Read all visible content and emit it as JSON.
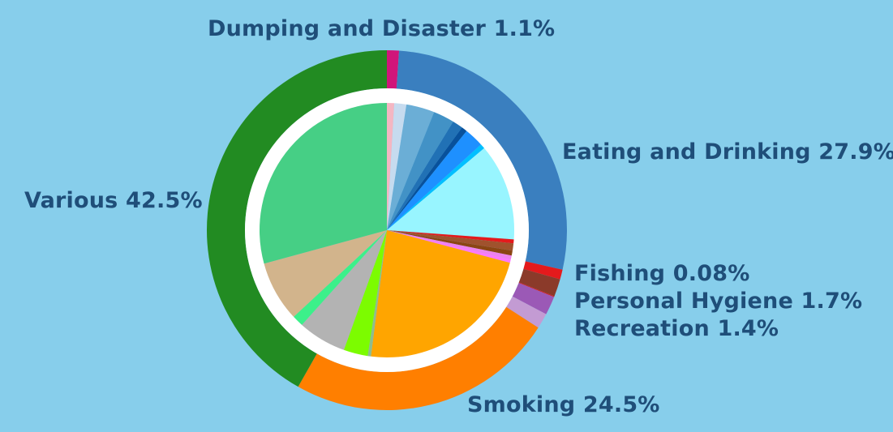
{
  "colors": {
    "background": "#87CEEB",
    "label_text": "#1F4E79",
    "ring_gap": "#FFFFFF"
  },
  "chart_data": {
    "type": "pie",
    "outer_ring": {
      "slices": [
        {
          "label": "Dumping and Disaster",
          "value_label": "1.1%",
          "value": 1.1,
          "color": "#D0157A"
        },
        {
          "label": "Eating and Drinking",
          "value_label": "27.9%",
          "value": 27.9,
          "color": "#3A7FBF"
        },
        {
          "label": "",
          "value_label": "",
          "value": 0.9,
          "color": "#E41A1C"
        },
        {
          "label": "",
          "value_label": "",
          "value": 1.6,
          "color": "#8B3A2A"
        },
        {
          "label": "Fishing",
          "value_label": "0.08%",
          "value": 0.08,
          "color": "#D7191C"
        },
        {
          "label": "Personal Hygiene",
          "value_label": "1.7%",
          "value": 1.7,
          "color": "#9B59B6"
        },
        {
          "label": "Recreation",
          "value_label": "1.4%",
          "value": 1.4,
          "color": "#C39BD3"
        },
        {
          "label": "Smoking",
          "value_label": "24.5%",
          "value": 24.5,
          "color": "#FF7F00"
        },
        {
          "label": "Various",
          "value_label": "42.5%",
          "value": 42.5,
          "color": "#228B22"
        }
      ]
    },
    "inner_pie": {
      "slices": [
        {
          "value": 0.9,
          "color": "#F4B6C2"
        },
        {
          "value": 1.5,
          "color": "#C6DBEF"
        },
        {
          "value": 3.5,
          "color": "#6BAED6"
        },
        {
          "value": 2.6,
          "color": "#4292C6"
        },
        {
          "value": 1.3,
          "color": "#2171B5"
        },
        {
          "value": 0.7,
          "color": "#08519C"
        },
        {
          "value": 2.4,
          "color": "#1E90FF"
        },
        {
          "value": 0.6,
          "color": "#00BFFF"
        },
        {
          "value": 12.0,
          "color": "#98F5FF"
        },
        {
          "value": 0.5,
          "color": "#E41A1C"
        },
        {
          "value": 0.9,
          "color": "#A0522D"
        },
        {
          "value": 0.6,
          "color": "#8B4513"
        },
        {
          "value": 0.5,
          "color": "#EE82EE"
        },
        {
          "value": 0.4,
          "color": "#FF77FF"
        },
        {
          "value": 22.3,
          "color": "#FFA500"
        },
        {
          "value": 0.4,
          "color": "#8FBC8F"
        },
        {
          "value": 3.0,
          "color": "#7CFC00"
        },
        {
          "value": 6.0,
          "color": "#B3B3B3"
        },
        {
          "value": 1.4,
          "color": "#3CF08A"
        },
        {
          "value": 7.5,
          "color": "#D2B48C"
        },
        {
          "value": 28.5,
          "color": "#46CF85"
        }
      ]
    }
  },
  "labels": {
    "dumping": "Dumping and Disaster 1.1%",
    "eating": "Eating and Drinking 27.9%",
    "various": "Various 42.5%",
    "fishing": "Fishing 0.08%",
    "hygiene": "Personal Hygiene 1.7%",
    "recreation": "Recreation 1.4%",
    "smoking": "Smoking 24.5%"
  }
}
